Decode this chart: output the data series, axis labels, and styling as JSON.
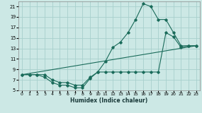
{
  "xlabel": "Humidex (Indice chaleur)",
  "bg_color": "#cce8e5",
  "grid_color": "#a8d0cc",
  "line_color": "#1a6b5a",
  "xlim": [
    -0.5,
    23.5
  ],
  "ylim": [
    5,
    22
  ],
  "xticks": [
    0,
    1,
    2,
    3,
    4,
    5,
    6,
    7,
    8,
    9,
    10,
    11,
    12,
    13,
    14,
    15,
    16,
    17,
    18,
    19,
    20,
    21,
    22,
    23
  ],
  "yticks": [
    5,
    7,
    9,
    11,
    13,
    15,
    17,
    19,
    21
  ],
  "curve1_x": [
    0,
    1,
    2,
    3,
    4,
    5,
    6,
    7,
    8,
    9,
    10,
    11,
    12,
    13,
    14,
    15,
    16,
    17,
    18,
    19,
    20,
    21,
    22,
    23
  ],
  "curve1_y": [
    8,
    8,
    8,
    8,
    7,
    6.5,
    6.5,
    6,
    6,
    7.5,
    8.5,
    10.5,
    13.2,
    14.2,
    16,
    18.5,
    21.5,
    21.0,
    18.5,
    18.5,
    16.0,
    13.5,
    13.5,
    13.5
  ],
  "curve2_x": [
    0,
    1,
    2,
    3,
    4,
    5,
    6,
    7,
    8,
    9,
    10,
    11,
    12,
    13,
    14,
    15,
    16,
    17,
    18,
    19,
    20,
    21,
    22,
    23
  ],
  "curve2_y": [
    8,
    8,
    8,
    7.5,
    6.5,
    6.0,
    6.0,
    5.5,
    5.5,
    7.3,
    8.5,
    8.5,
    8.5,
    8.5,
    8.5,
    8.5,
    8.5,
    8.5,
    8.5,
    16.0,
    15.2,
    13.2,
    13.5,
    13.5
  ],
  "curve3_x": [
    0,
    23
  ],
  "curve3_y": [
    8.0,
    13.5
  ]
}
